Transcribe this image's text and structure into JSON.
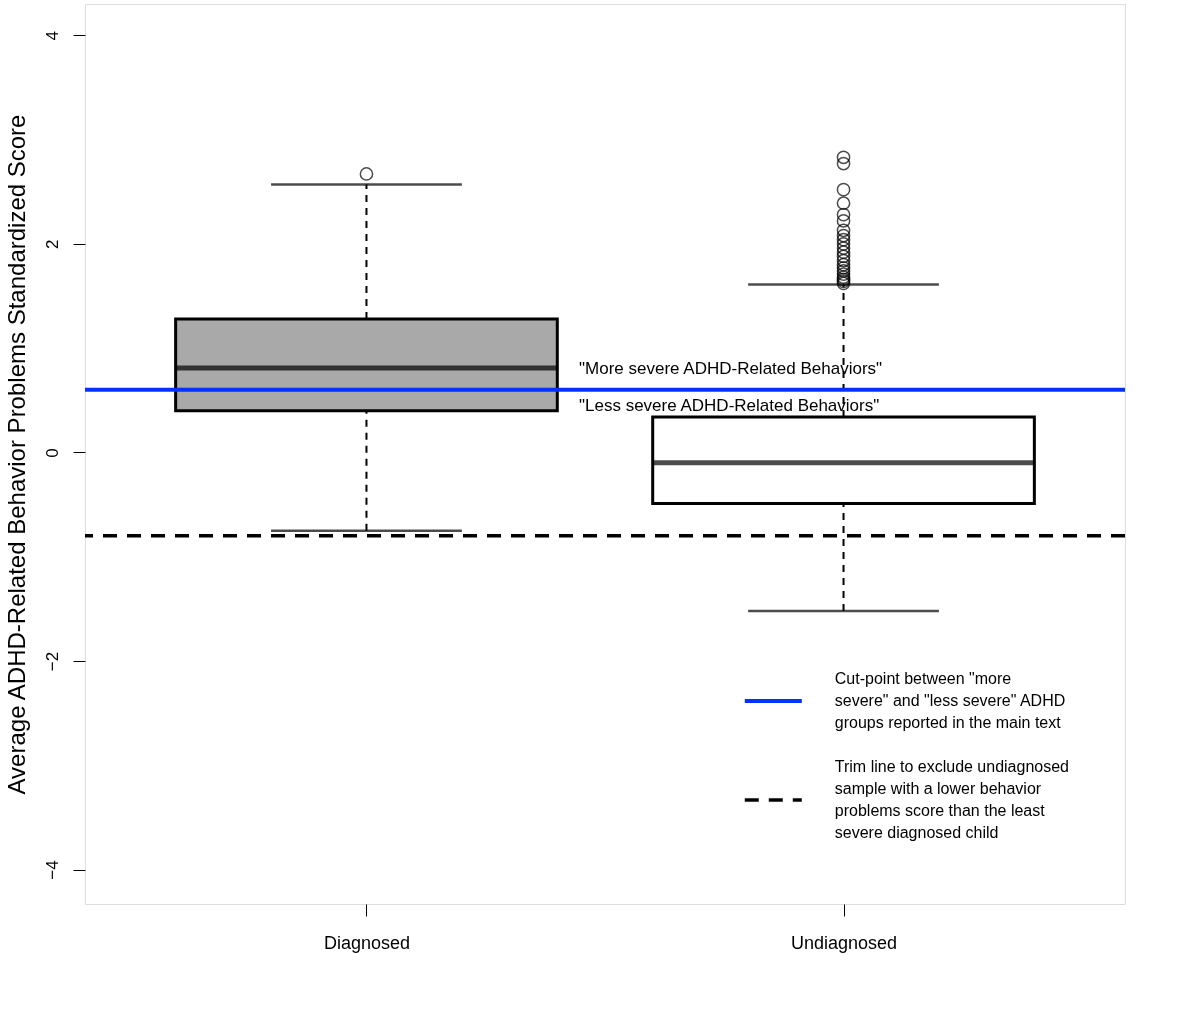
{
  "chart_data": {
    "type": "box",
    "ylabel": "Average ADHD-Related Behavior Problems Standardized Score",
    "categories": [
      "Diagnosed",
      "Undiagnosed"
    ],
    "colors": [
      "#a9a9a9",
      "#ffffff"
    ],
    "boxes": [
      {
        "low": -0.75,
        "q1": 0.4,
        "median": 0.81,
        "q3": 1.28,
        "high": 2.57,
        "outliers": [
          2.67
        ]
      },
      {
        "low": -1.52,
        "q1": -0.49,
        "median": -0.1,
        "q3": 0.34,
        "high": 1.61,
        "outliers": [
          2.83,
          2.77,
          2.52,
          2.39,
          2.28,
          2.22,
          2.13,
          2.08,
          2.04,
          2.0,
          1.96,
          1.92,
          1.88,
          1.84,
          1.8,
          1.77,
          1.74,
          1.71,
          1.68,
          1.66,
          1.64,
          1.62
        ]
      }
    ],
    "ylim": [
      -4.33,
      4.3
    ],
    "yticks": [
      -4,
      -2,
      0,
      2,
      4
    ],
    "grid": false,
    "legend": "bottom right",
    "ref_lines": [
      {
        "axis": "y",
        "value": 0.6,
        "color": "#0033ff",
        "line_style": "solid",
        "label": "Cut-point between \"more\nsevere\" and \"less severe\" ADHD\ngroups reported in the main text"
      },
      {
        "axis": "y",
        "value": -0.8,
        "color": "#000000",
        "line_style": "dashed",
        "label": "Trim line to exclude undiagnosed\nsample with a lower behavior\nproblems score than the least\nsevere diagnosed child"
      }
    ],
    "annotations": [
      "\"More severe ADHD-Related Behaviors\"",
      "\"Less severe ADHD-Related Behaviors\""
    ]
  }
}
